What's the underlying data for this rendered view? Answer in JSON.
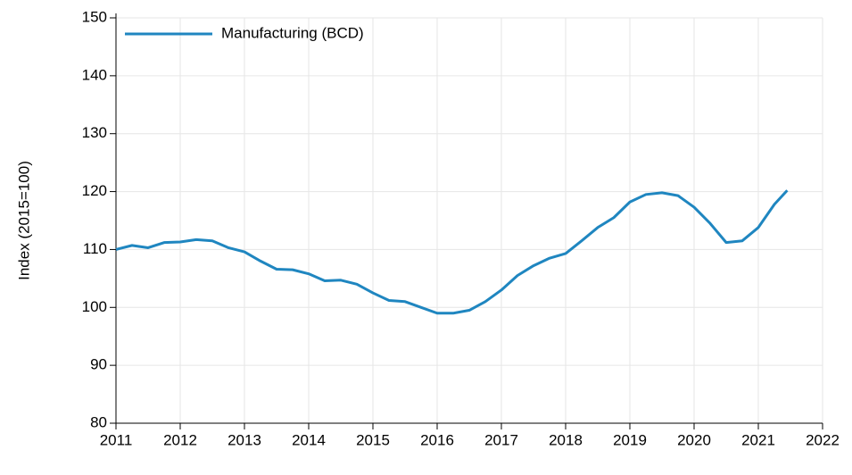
{
  "chart_data": {
    "type": "line",
    "y_label": "Index (2015=100)",
    "x": [
      2011,
      2011.25,
      2011.5,
      2011.75,
      2012,
      2012.25,
      2012.5,
      2012.75,
      2013,
      2013.25,
      2013.5,
      2013.75,
      2014,
      2014.25,
      2014.5,
      2014.75,
      2015,
      2015.25,
      2015.5,
      2015.75,
      2016,
      2016.25,
      2016.5,
      2016.75,
      2017,
      2017.25,
      2017.5,
      2017.75,
      2018,
      2018.25,
      2018.5,
      2018.75,
      2019,
      2019.25,
      2019.5,
      2019.75,
      2020,
      2020.25,
      2020.5,
      2020.75,
      2021,
      2021.25,
      2021.45
    ],
    "series": [
      {
        "name": "Manufacturing (BCD)",
        "color": "#1f86c0",
        "values": [
          110,
          110.7,
          110.3,
          111.2,
          111.3,
          111.7,
          111.5,
          110.3,
          109.6,
          108,
          106.6,
          106.5,
          105.8,
          104.6,
          104.7,
          104,
          102.5,
          101.2,
          101,
          100,
          99,
          99,
          99.5,
          101,
          103,
          105.5,
          107.2,
          108.5,
          109.3,
          111.5,
          113.8,
          115.5,
          118.2,
          119.5,
          119.8,
          119.3,
          117.3,
          114.5,
          111.2,
          111.5,
          113.8,
          117.8,
          120.2
        ]
      }
    ],
    "xlim": [
      2011,
      2022
    ],
    "xticks": [
      2011,
      2012,
      2013,
      2014,
      2015,
      2016,
      2017,
      2018,
      2019,
      2020,
      2021,
      2022
    ],
    "ylim": [
      80,
      150
    ],
    "yticks": [
      80,
      90,
      100,
      110,
      120,
      130,
      140,
      150
    ],
    "grid": true,
    "legend": "upper-left"
  }
}
